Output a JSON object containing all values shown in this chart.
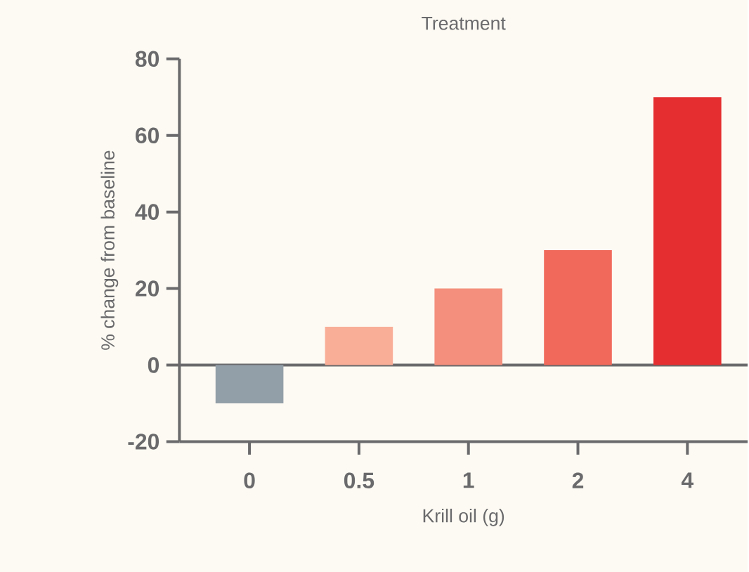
{
  "chart_data": {
    "type": "bar",
    "title": "Treatment",
    "xlabel": "Krill oil (g)",
    "ylabel": "% change from baseline",
    "categories": [
      "0",
      "0.5",
      "1",
      "2",
      "4"
    ],
    "values": [
      -10,
      10,
      20,
      30,
      70
    ],
    "colors": [
      "#939fa8",
      "#f9ae98",
      "#f38f7c",
      "#f0695a",
      "#e52e2f"
    ],
    "ylim": [
      -20,
      80
    ],
    "yticks": [
      -20,
      0,
      20,
      40,
      60,
      80
    ],
    "ref_lines": [
      {
        "axis": "y",
        "value": 0
      }
    ]
  }
}
